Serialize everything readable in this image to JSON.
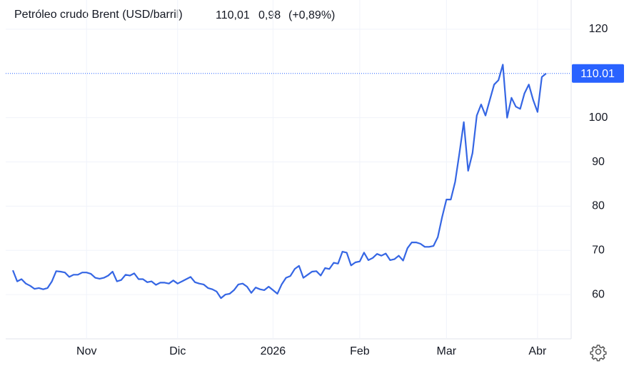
{
  "chart_data": {
    "type": "line",
    "title": "Petróleo crudo Brent (USD/barril)",
    "price_text": "110,01",
    "change_text": "0,98",
    "change_pct_text": "(+0,89%)",
    "color": "#3566e4",
    "price_color": "#2962ff",
    "change_color": "#22ab3d",
    "last_price": 110.01,
    "categories": [
      null,
      null,
      null,
      null,
      null,
      null,
      null,
      null,
      null,
      null,
      null,
      null,
      null,
      null,
      null,
      null,
      null,
      "Nov",
      null,
      null,
      null,
      null,
      null,
      null,
      null,
      null,
      null,
      null,
      null,
      null,
      null,
      null,
      null,
      null,
      null,
      null,
      null,
      null,
      "Dic",
      null,
      null,
      null,
      null,
      null,
      null,
      null,
      null,
      null,
      null,
      null,
      null,
      null,
      null,
      null,
      null,
      null,
      null,
      null,
      null,
      null,
      "2026",
      null,
      null,
      null,
      null,
      null,
      null,
      null,
      null,
      null,
      null,
      null,
      null,
      null,
      null,
      null,
      null,
      null,
      null,
      null,
      "Feb",
      null,
      null,
      null,
      null,
      null,
      null,
      null,
      null,
      null,
      null,
      null,
      null,
      null,
      null,
      null,
      null,
      null,
      null,
      null,
      "Mar",
      null,
      null,
      null,
      null,
      null,
      null,
      null,
      null,
      null,
      null,
      null,
      null,
      null,
      null,
      null,
      null,
      null,
      null,
      null,
      null,
      "Abr",
      null,
      null
    ],
    "values": [
      65.5,
      63,
      63.5,
      62.5,
      62,
      61.3,
      61.5,
      61.2,
      61.5,
      63,
      65.3,
      65.2,
      65,
      64,
      64.5,
      64.5,
      65,
      65,
      64.7,
      63.8,
      63.6,
      63.8,
      64.3,
      65.2,
      63,
      63.3,
      64.5,
      64.3,
      64.8,
      63.5,
      63.5,
      62.8,
      63,
      62.2,
      62.7,
      62.7,
      62.5,
      63.2,
      62.5,
      63,
      63.5,
      64,
      62.8,
      62.5,
      62.3,
      61.5,
      61.2,
      60.7,
      59.2,
      60,
      60.2,
      61,
      62.3,
      62.5,
      61.8,
      60.4,
      61.6,
      61.2,
      61,
      61.8,
      61,
      60.2,
      62.3,
      63.8,
      64.2,
      65.8,
      66.5,
      63.8,
      64.5,
      65.2,
      65.3,
      64.3,
      66,
      65.8,
      67.2,
      67,
      69.7,
      69.5,
      66.6,
      67.3,
      67.5,
      69.5,
      67.8,
      68.3,
      69.2,
      68.8,
      69.3,
      67.8,
      68,
      68.8,
      67.7,
      70.5,
      71.8,
      71.8,
      71.5,
      70.8,
      70.8,
      71,
      73,
      77.5,
      81.5,
      81.5,
      85.5,
      92,
      99,
      88,
      92,
      100.5,
      103,
      100.5,
      104,
      107.5,
      108.5,
      112,
      100,
      104.5,
      102.5,
      102,
      105.5,
      107.5,
      104,
      101.3,
      109.2,
      110.01
    ],
    "ylim": [
      50,
      125
    ],
    "yticks": [
      60,
      70,
      80,
      90,
      100,
      120
    ],
    "grid": true
  }
}
